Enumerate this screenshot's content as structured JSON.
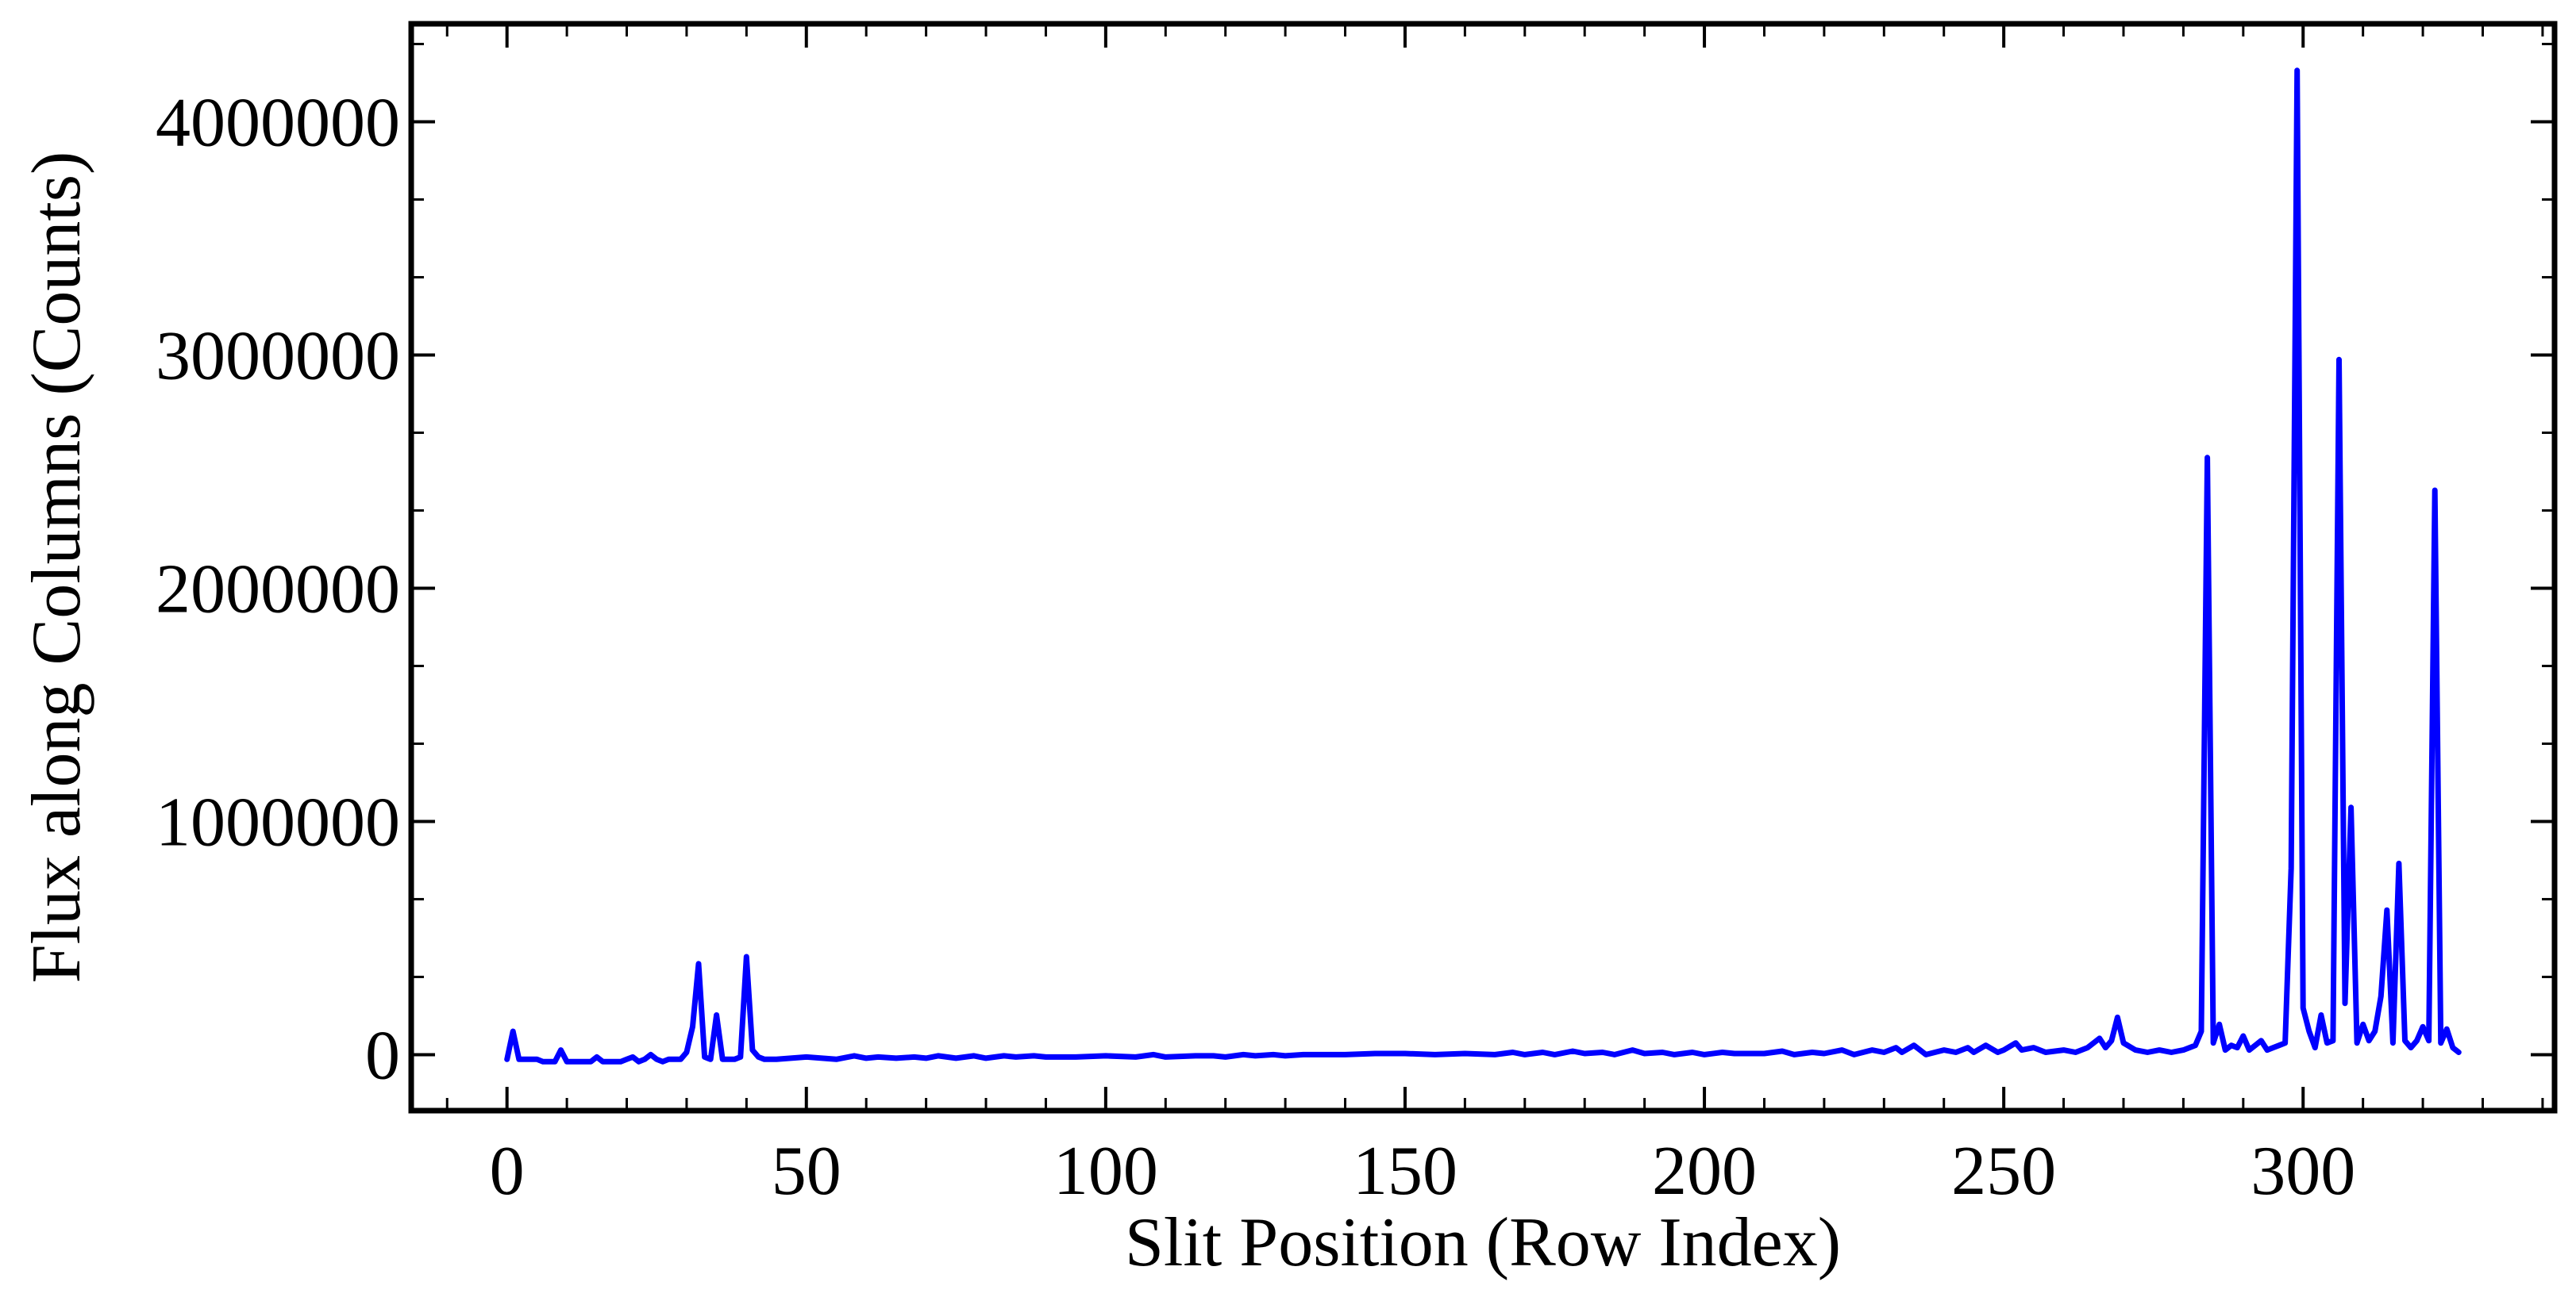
{
  "chart_data": {
    "type": "line",
    "xlabel": "Slit Position (Row Index)",
    "ylabel": "Flux along Columns (Counts)",
    "xlim": [
      -16,
      342
    ],
    "ylim": [
      -240000,
      4420000
    ],
    "xticks": [
      0,
      50,
      100,
      150,
      200,
      250,
      300
    ],
    "yticks": [
      0,
      1000000,
      2000000,
      3000000,
      4000000
    ],
    "x_minor_step": 10,
    "y_minor_step": 333333.33,
    "grid": false,
    "legend": "none",
    "series": [
      {
        "color": "#0000ff",
        "points": [
          [
            0,
            -20000
          ],
          [
            1,
            100000
          ],
          [
            2,
            -20000
          ],
          [
            3,
            -20000
          ],
          [
            4,
            -20000
          ],
          [
            5,
            -20000
          ],
          [
            6,
            -30000
          ],
          [
            7,
            -30000
          ],
          [
            8,
            -30000
          ],
          [
            9,
            20000
          ],
          [
            10,
            -30000
          ],
          [
            11,
            -30000
          ],
          [
            12,
            -30000
          ],
          [
            13,
            -30000
          ],
          [
            14,
            -30000
          ],
          [
            15,
            -10000
          ],
          [
            16,
            -30000
          ],
          [
            17,
            -30000
          ],
          [
            18,
            -30000
          ],
          [
            19,
            -30000
          ],
          [
            20,
            -20000
          ],
          [
            21,
            -10000
          ],
          [
            22,
            -30000
          ],
          [
            23,
            -20000
          ],
          [
            24,
            0
          ],
          [
            25,
            -20000
          ],
          [
            26,
            -30000
          ],
          [
            27,
            -20000
          ],
          [
            28,
            -20000
          ],
          [
            29,
            -20000
          ],
          [
            30,
            10000
          ],
          [
            31,
            120000
          ],
          [
            32,
            390000
          ],
          [
            33,
            -10000
          ],
          [
            34,
            -20000
          ],
          [
            35,
            170000
          ],
          [
            36,
            -20000
          ],
          [
            37,
            -20000
          ],
          [
            38,
            -20000
          ],
          [
            39,
            -10000
          ],
          [
            40,
            420000
          ],
          [
            41,
            20000
          ],
          [
            42,
            -10000
          ],
          [
            43,
            -20000
          ],
          [
            44,
            -20000
          ],
          [
            45,
            -20000
          ],
          [
            50,
            -10000
          ],
          [
            55,
            -20000
          ],
          [
            58,
            -5000
          ],
          [
            60,
            -15000
          ],
          [
            62,
            -10000
          ],
          [
            65,
            -15000
          ],
          [
            68,
            -10000
          ],
          [
            70,
            -15000
          ],
          [
            72,
            -5000
          ],
          [
            75,
            -15000
          ],
          [
            78,
            -5000
          ],
          [
            80,
            -15000
          ],
          [
            83,
            -5000
          ],
          [
            85,
            -10000
          ],
          [
            88,
            -5000
          ],
          [
            90,
            -10000
          ],
          [
            95,
            -10000
          ],
          [
            100,
            -5000
          ],
          [
            105,
            -10000
          ],
          [
            108,
            0
          ],
          [
            110,
            -10000
          ],
          [
            115,
            -5000
          ],
          [
            118,
            -5000
          ],
          [
            120,
            -10000
          ],
          [
            123,
            0
          ],
          [
            125,
            -5000
          ],
          [
            128,
            0
          ],
          [
            130,
            -5000
          ],
          [
            133,
            0
          ],
          [
            135,
            0
          ],
          [
            140,
            0
          ],
          [
            145,
            5000
          ],
          [
            150,
            5000
          ],
          [
            155,
            0
          ],
          [
            160,
            5000
          ],
          [
            165,
            0
          ],
          [
            168,
            10000
          ],
          [
            170,
            0
          ],
          [
            173,
            10000
          ],
          [
            175,
            0
          ],
          [
            178,
            15000
          ],
          [
            180,
            5000
          ],
          [
            183,
            10000
          ],
          [
            185,
            0
          ],
          [
            188,
            20000
          ],
          [
            190,
            5000
          ],
          [
            193,
            10000
          ],
          [
            195,
            0
          ],
          [
            198,
            10000
          ],
          [
            200,
            0
          ],
          [
            203,
            10000
          ],
          [
            205,
            5000
          ],
          [
            210,
            5000
          ],
          [
            213,
            15000
          ],
          [
            215,
            0
          ],
          [
            218,
            10000
          ],
          [
            220,
            5000
          ],
          [
            223,
            20000
          ],
          [
            225,
            0
          ],
          [
            228,
            20000
          ],
          [
            230,
            10000
          ],
          [
            232,
            30000
          ],
          [
            233,
            10000
          ],
          [
            235,
            40000
          ],
          [
            237,
            0
          ],
          [
            240,
            20000
          ],
          [
            242,
            10000
          ],
          [
            244,
            30000
          ],
          [
            245,
            10000
          ],
          [
            247,
            40000
          ],
          [
            249,
            10000
          ],
          [
            250,
            20000
          ],
          [
            252,
            50000
          ],
          [
            253,
            20000
          ],
          [
            255,
            30000
          ],
          [
            257,
            10000
          ],
          [
            260,
            20000
          ],
          [
            262,
            10000
          ],
          [
            264,
            30000
          ],
          [
            266,
            70000
          ],
          [
            267,
            30000
          ],
          [
            268,
            60000
          ],
          [
            269,
            160000
          ],
          [
            270,
            50000
          ],
          [
            272,
            20000
          ],
          [
            274,
            10000
          ],
          [
            276,
            20000
          ],
          [
            278,
            10000
          ],
          [
            280,
            20000
          ],
          [
            282,
            40000
          ],
          [
            283,
            100000
          ],
          [
            284,
            2560000
          ],
          [
            285,
            50000
          ],
          [
            286,
            130000
          ],
          [
            287,
            20000
          ],
          [
            288,
            40000
          ],
          [
            289,
            30000
          ],
          [
            290,
            80000
          ],
          [
            291,
            20000
          ],
          [
            292,
            40000
          ],
          [
            293,
            60000
          ],
          [
            294,
            20000
          ],
          [
            295,
            30000
          ],
          [
            296,
            40000
          ],
          [
            297,
            50000
          ],
          [
            298,
            800000
          ],
          [
            299,
            4220000
          ],
          [
            300,
            200000
          ],
          [
            301,
            100000
          ],
          [
            302,
            30000
          ],
          [
            303,
            170000
          ],
          [
            304,
            50000
          ],
          [
            305,
            60000
          ],
          [
            306,
            2980000
          ],
          [
            307,
            220000
          ],
          [
            308,
            1060000
          ],
          [
            309,
            50000
          ],
          [
            310,
            130000
          ],
          [
            311,
            60000
          ],
          [
            312,
            100000
          ],
          [
            313,
            250000
          ],
          [
            314,
            620000
          ],
          [
            315,
            50000
          ],
          [
            316,
            820000
          ],
          [
            317,
            60000
          ],
          [
            318,
            30000
          ],
          [
            319,
            60000
          ],
          [
            320,
            120000
          ],
          [
            321,
            60000
          ],
          [
            322,
            2420000
          ],
          [
            323,
            50000
          ],
          [
            324,
            110000
          ],
          [
            325,
            30000
          ],
          [
            326,
            10000
          ]
        ]
      }
    ]
  }
}
